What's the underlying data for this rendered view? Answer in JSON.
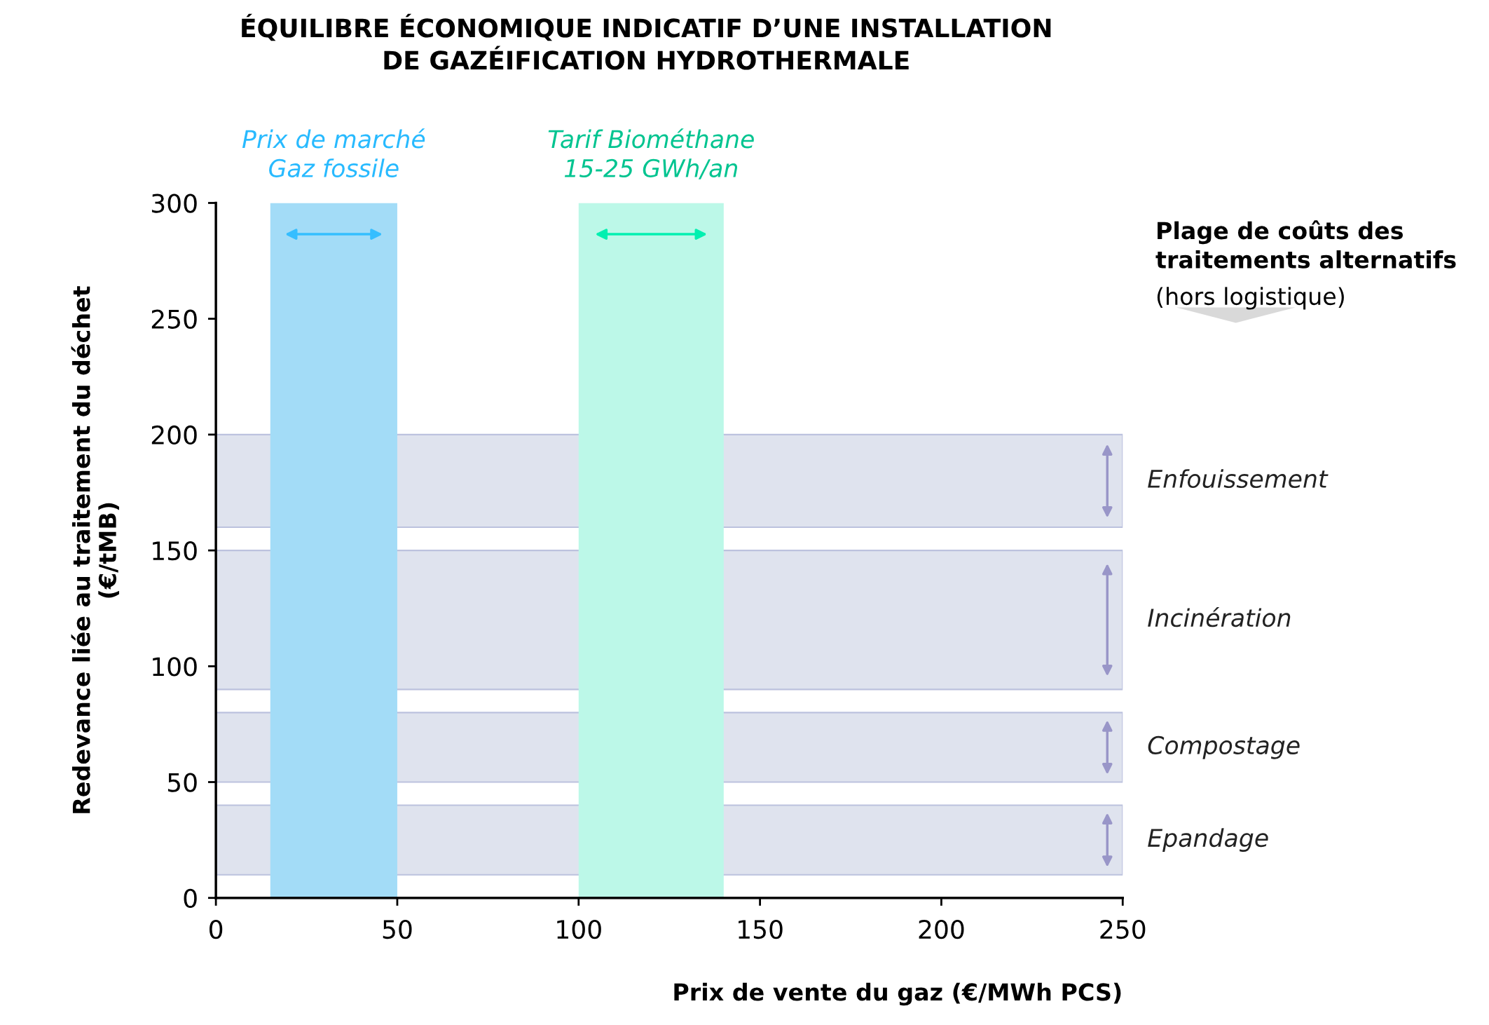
{
  "chart_data": {
    "type": "line",
    "title": "ÉQUILIBRE ÉCONOMIQUE INDICATIF D’UNE INSTALLATION\nDE GAZÉIFICATION HYDROTHERMALE",
    "xlabel": "Prix de vente du gaz (€/MWh PCS)",
    "ylabel": "Redevance liée au traitement du déchet\n(€/tMB)",
    "xlim": [
      0,
      250
    ],
    "xticks": [
      0,
      50,
      100,
      150,
      200,
      250
    ],
    "ylim": [
      0,
      300
    ],
    "yticks": [
      0,
      50,
      100,
      150,
      200,
      250,
      300
    ],
    "bands": [
      {
        "axis": "x",
        "from": 15,
        "to": 50,
        "label": "Prix de marché\nGaz fossile",
        "color": "#a3dcf7"
      },
      {
        "axis": "x",
        "from": 100,
        "to": 140,
        "label": "Tarif Biométhane\n15-25 GWh/an",
        "color": "#bcf8e8"
      },
      {
        "axis": "y",
        "from": 160,
        "to": 200,
        "label": "Enfouissement",
        "color": "#dfe3ee"
      },
      {
        "axis": "y",
        "from": 90,
        "to": 150,
        "label": "Incinération",
        "color": "#dfe3ee"
      },
      {
        "axis": "y",
        "from": 50,
        "to": 80,
        "label": "Compostage",
        "color": "#dfe3ee"
      },
      {
        "axis": "y",
        "from": 10,
        "to": 40,
        "label": "Epandage",
        "color": "#dfe3ee"
      }
    ],
    "annotations": [
      "Plage de coûts des traitements alternatifs",
      "(hors logistique)"
    ]
  }
}
